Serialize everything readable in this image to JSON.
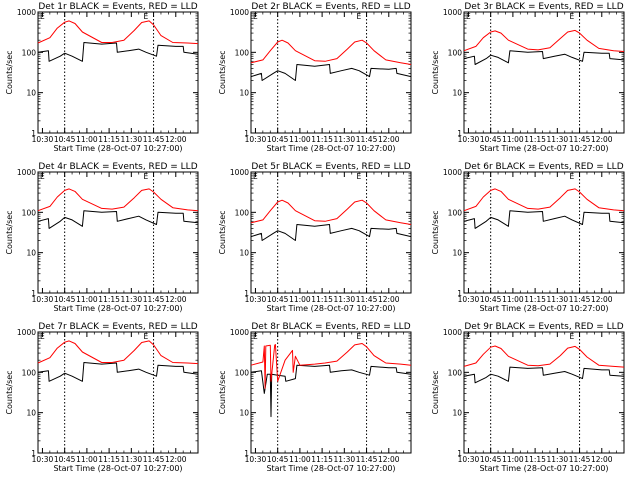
{
  "chart_data": [
    {
      "type": "line",
      "title": "Det 1r BLACK = Events, RED = LLD",
      "xlabel": "Start Time (28-Oct-07 10:27:00)",
      "ylabel": "Counts/sec",
      "yscale": "log",
      "ylim": [
        1,
        1000
      ],
      "yticks": [
        "1",
        "10",
        "100",
        "1000"
      ],
      "xticks": [
        "10:30",
        "10:45",
        "11:00",
        "11:15",
        "11:30",
        "11:45",
        "12:00"
      ],
      "xlim_minutes": [
        -3,
        105
      ],
      "vlines": [
        "10:45",
        "11:45"
      ],
      "marker": "E",
      "series": [
        {
          "color": "#ff0000",
          "x_minutes": [
            -3,
            5,
            10,
            15,
            18,
            22,
            27,
            40,
            47,
            55,
            62,
            67,
            72,
            75,
            80,
            88,
            98,
            105
          ],
          "values": [
            170,
            230,
            400,
            560,
            600,
            520,
            320,
            175,
            175,
            200,
            350,
            550,
            600,
            480,
            260,
            175,
            170,
            165
          ]
        },
        {
          "color": "#000000",
          "x_minutes": [
            -3,
            4,
            4.5,
            12,
            15,
            20,
            27,
            28,
            40,
            50,
            50.5,
            58,
            65,
            70,
            77,
            78,
            90,
            95,
            95.5,
            105
          ],
          "values": [
            100,
            110,
            60,
            80,
            95,
            80,
            60,
            175,
            160,
            170,
            100,
            110,
            120,
            100,
            80,
            150,
            140,
            140,
            100,
            90
          ]
        }
      ]
    },
    {
      "type": "line",
      "title": "Det 2r BLACK = Events, RED = LLD",
      "xlabel": "Start Time (28-Oct-07 10:27:00)",
      "ylabel": "Counts/sec",
      "yscale": "log",
      "ylim": [
        1,
        1000
      ],
      "yticks": [
        "1",
        "10",
        "100",
        "1000"
      ],
      "xticks": [
        "10:30",
        "10:45",
        "11:00",
        "11:15",
        "11:30",
        "11:45",
        "12:00"
      ],
      "xlim_minutes": [
        -3,
        105
      ],
      "vlines": [
        "10:45",
        "11:45"
      ],
      "marker": "E",
      "series": [
        {
          "color": "#ff0000",
          "x_minutes": [
            -3,
            5,
            10,
            15,
            18,
            22,
            27,
            40,
            47,
            55,
            62,
            67,
            72,
            75,
            80,
            88,
            98,
            105
          ],
          "values": [
            55,
            65,
            110,
            180,
            200,
            170,
            110,
            62,
            60,
            70,
            120,
            180,
            200,
            170,
            110,
            65,
            55,
            50
          ]
        },
        {
          "color": "#000000",
          "x_minutes": [
            -3,
            4,
            4.5,
            12,
            15,
            20,
            27,
            28,
            40,
            50,
            50.5,
            58,
            65,
            70,
            77,
            78,
            90,
            95,
            95.5,
            105
          ],
          "values": [
            25,
            30,
            20,
            30,
            35,
            30,
            20,
            50,
            45,
            50,
            30,
            35,
            40,
            35,
            25,
            40,
            38,
            40,
            30,
            25
          ]
        }
      ]
    },
    {
      "type": "line",
      "title": "Det 3r BLACK = Events, RED = LLD",
      "xlabel": "Start Time (28-Oct-07 10:27:00)",
      "ylabel": "Counts/sec",
      "yscale": "log",
      "ylim": [
        1,
        1000
      ],
      "yticks": [
        "1",
        "10",
        "100",
        "1000"
      ],
      "xticks": [
        "10:30",
        "10:45",
        "11:00",
        "11:15",
        "11:30",
        "11:45",
        "12:00"
      ],
      "xlim_minutes": [
        -3,
        105
      ],
      "vlines": [
        "10:45",
        "11:45"
      ],
      "marker": "E",
      "series": [
        {
          "color": "#ff0000",
          "x_minutes": [
            -3,
            5,
            10,
            15,
            18,
            22,
            27,
            40,
            47,
            55,
            62,
            67,
            72,
            75,
            80,
            88,
            98,
            105
          ],
          "values": [
            110,
            140,
            230,
            320,
            340,
            300,
            200,
            120,
            115,
            130,
            220,
            320,
            350,
            300,
            200,
            125,
            110,
            105
          ]
        },
        {
          "color": "#000000",
          "x_minutes": [
            -3,
            4,
            4.5,
            12,
            15,
            20,
            27,
            28,
            40,
            50,
            50.5,
            58,
            65,
            70,
            77,
            78,
            90,
            95,
            95.5,
            105
          ],
          "values": [
            70,
            80,
            50,
            70,
            85,
            75,
            55,
            110,
            100,
            105,
            70,
            80,
            90,
            75,
            60,
            100,
            95,
            95,
            70,
            65
          ]
        }
      ]
    },
    {
      "type": "line",
      "title": "Det 4r BLACK = Events, RED = LLD",
      "xlabel": "Start Time (28-Oct-07 10:27:00)",
      "ylabel": "Counts/sec",
      "yscale": "log",
      "ylim": [
        1,
        1000
      ],
      "yticks": [
        "1",
        "10",
        "100",
        "1000"
      ],
      "xticks": [
        "10:30",
        "10:45",
        "11:00",
        "11:15",
        "11:30",
        "11:45",
        "12:00"
      ],
      "xlim_minutes": [
        -3,
        105
      ],
      "vlines": [
        "10:45",
        "11:45"
      ],
      "marker": "E",
      "series": [
        {
          "color": "#ff0000",
          "x_minutes": [
            -3,
            5,
            10,
            15,
            18,
            22,
            27,
            40,
            47,
            55,
            62,
            67,
            72,
            75,
            80,
            88,
            98,
            105
          ],
          "values": [
            110,
            140,
            240,
            350,
            380,
            330,
            210,
            125,
            120,
            135,
            230,
            350,
            380,
            320,
            210,
            130,
            115,
            110
          ]
        },
        {
          "color": "#000000",
          "x_minutes": [
            -3,
            4,
            4.5,
            12,
            15,
            20,
            27,
            28,
            40,
            50,
            50.5,
            58,
            65,
            70,
            77,
            78,
            90,
            95,
            95.5,
            105
          ],
          "values": [
            60,
            70,
            40,
            60,
            75,
            65,
            45,
            110,
            100,
            105,
            60,
            70,
            80,
            65,
            50,
            100,
            95,
            95,
            60,
            55
          ]
        }
      ]
    },
    {
      "type": "line",
      "title": "Det 5r BLACK = Events, RED = LLD",
      "xlabel": "Start Time (28-Oct-07 10:27:00)",
      "ylabel": "Counts/sec",
      "yscale": "log",
      "ylim": [
        1,
        1000
      ],
      "yticks": [
        "1",
        "10",
        "100",
        "1000"
      ],
      "xticks": [
        "10:30",
        "10:45",
        "11:00",
        "11:15",
        "11:30",
        "11:45",
        "12:00"
      ],
      "xlim_minutes": [
        -3,
        105
      ],
      "vlines": [
        "10:45",
        "11:45"
      ],
      "marker": "E",
      "series": [
        {
          "color": "#ff0000",
          "x_minutes": [
            -3,
            5,
            10,
            15,
            18,
            22,
            27,
            40,
            47,
            55,
            62,
            67,
            72,
            75,
            80,
            88,
            98,
            105
          ],
          "values": [
            55,
            65,
            110,
            180,
            200,
            170,
            110,
            62,
            60,
            70,
            120,
            180,
            200,
            170,
            110,
            65,
            55,
            50
          ]
        },
        {
          "color": "#000000",
          "x_minutes": [
            -3,
            4,
            4.5,
            12,
            15,
            20,
            27,
            28,
            40,
            50,
            50.5,
            58,
            65,
            70,
            77,
            78,
            90,
            95,
            95.5,
            105
          ],
          "values": [
            25,
            30,
            20,
            30,
            35,
            30,
            20,
            50,
            45,
            50,
            30,
            35,
            40,
            35,
            25,
            40,
            38,
            40,
            30,
            25
          ]
        }
      ]
    },
    {
      "type": "line",
      "title": "Det 6r BLACK = Events, RED = LLD",
      "xlabel": "Start Time (28-Oct-07 10:27:00)",
      "ylabel": "Counts/sec",
      "yscale": "log",
      "ylim": [
        1,
        1000
      ],
      "yticks": [
        "1",
        "10",
        "100",
        "1000"
      ],
      "xticks": [
        "10:30",
        "10:45",
        "11:00",
        "11:15",
        "11:30",
        "11:45",
        "12:00"
      ],
      "xlim_minutes": [
        -3,
        105
      ],
      "vlines": [
        "10:45",
        "11:45"
      ],
      "marker": "E",
      "series": [
        {
          "color": "#ff0000",
          "x_minutes": [
            -3,
            5,
            10,
            15,
            18,
            22,
            27,
            40,
            47,
            55,
            62,
            67,
            72,
            75,
            80,
            88,
            98,
            105
          ],
          "values": [
            110,
            140,
            240,
            350,
            380,
            330,
            210,
            125,
            120,
            135,
            230,
            350,
            380,
            320,
            210,
            130,
            115,
            110
          ]
        },
        {
          "color": "#000000",
          "x_minutes": [
            -3,
            4,
            4.5,
            12,
            15,
            20,
            27,
            28,
            40,
            50,
            50.5,
            58,
            65,
            70,
            77,
            78,
            90,
            95,
            95.5,
            105
          ],
          "values": [
            60,
            70,
            40,
            60,
            75,
            65,
            45,
            110,
            100,
            105,
            60,
            70,
            80,
            65,
            50,
            100,
            95,
            95,
            60,
            55
          ]
        }
      ]
    },
    {
      "type": "line",
      "title": "Det 7r BLACK = Events, RED = LLD",
      "xlabel": "Start Time (28-Oct-07 10:27:00)",
      "ylabel": "Counts/sec",
      "yscale": "log",
      "ylim": [
        1,
        1000
      ],
      "yticks": [
        "1",
        "10",
        "100",
        "1000"
      ],
      "xticks": [
        "10:30",
        "10:45",
        "11:00",
        "11:15",
        "11:30",
        "11:45",
        "12:00"
      ],
      "xlim_minutes": [
        -3,
        105
      ],
      "vlines": [
        "10:45",
        "11:45"
      ],
      "marker": "E",
      "series": [
        {
          "color": "#ff0000",
          "x_minutes": [
            -3,
            5,
            10,
            15,
            18,
            22,
            27,
            40,
            47,
            55,
            62,
            67,
            72,
            75,
            80,
            88,
            98,
            105
          ],
          "values": [
            170,
            230,
            400,
            560,
            600,
            520,
            320,
            175,
            175,
            200,
            350,
            550,
            600,
            480,
            260,
            175,
            170,
            165
          ]
        },
        {
          "color": "#000000",
          "x_minutes": [
            -3,
            4,
            4.5,
            12,
            15,
            20,
            27,
            28,
            40,
            50,
            50.5,
            58,
            65,
            70,
            77,
            78,
            90,
            95,
            95.5,
            105
          ],
          "values": [
            100,
            110,
            60,
            80,
            95,
            80,
            60,
            175,
            160,
            170,
            100,
            110,
            120,
            100,
            80,
            150,
            140,
            140,
            100,
            90
          ]
        }
      ]
    },
    {
      "type": "line",
      "title": "Det 8r BLACK = Events, RED = LLD",
      "xlabel": "Start Time (28-Oct-07 10:27:00)",
      "ylabel": "Counts/sec",
      "yscale": "log",
      "ylim": [
        1,
        1000
      ],
      "yticks": [
        "1",
        "10",
        "100",
        "1000"
      ],
      "xticks": [
        "10:30",
        "10:45",
        "11:00",
        "11:15",
        "11:30",
        "11:45",
        "12:00"
      ],
      "xlim_minutes": [
        -3,
        105
      ],
      "vlines": [
        "10:45",
        "11:45"
      ],
      "marker": "E",
      "series": [
        {
          "color": "#ff0000",
          "x_minutes": [
            -3,
            5,
            6,
            6.5,
            7,
            10,
            10.5,
            13,
            13.5,
            15,
            20,
            25,
            25.5,
            27,
            30,
            40,
            47,
            55,
            62,
            67,
            72,
            75,
            80,
            88,
            98,
            105
          ],
          "values": [
            150,
            180,
            450,
            40,
            450,
            470,
            60,
            470,
            490,
            60,
            200,
            350,
            100,
            250,
            150,
            160,
            170,
            190,
            320,
            480,
            520,
            430,
            260,
            170,
            160,
            150
          ]
        },
        {
          "color": "#000000",
          "x_minutes": [
            -3,
            4,
            6,
            8,
            10,
            10.5,
            11,
            15,
            20,
            20.5,
            27,
            28,
            40,
            50,
            50.5,
            58,
            65,
            70,
            77,
            78,
            90,
            95,
            95.5,
            105
          ],
          "values": [
            100,
            110,
            30,
            90,
            90,
            8,
            90,
            85,
            80,
            60,
            70,
            150,
            140,
            150,
            100,
            110,
            115,
            100,
            85,
            140,
            130,
            130,
            100,
            90
          ]
        }
      ]
    },
    {
      "type": "line",
      "title": "Det 9r BLACK = Events, RED = LLD",
      "xlabel": "Start Time (28-Oct-07 10:27:00)",
      "ylabel": "Counts/sec",
      "yscale": "log",
      "ylim": [
        1,
        1000
      ],
      "yticks": [
        "1",
        "10",
        "100",
        "1000"
      ],
      "xticks": [
        "10:30",
        "10:45",
        "11:00",
        "11:15",
        "11:30",
        "11:45",
        "12:00"
      ],
      "xlim_minutes": [
        -3,
        105
      ],
      "vlines": [
        "10:45",
        "11:45"
      ],
      "marker": "E",
      "series": [
        {
          "color": "#ff0000",
          "x_minutes": [
            -3,
            5,
            10,
            15,
            18,
            22,
            27,
            40,
            47,
            55,
            62,
            67,
            72,
            75,
            80,
            88,
            98,
            105
          ],
          "values": [
            140,
            170,
            280,
            420,
            450,
            390,
            250,
            150,
            145,
            160,
            260,
            400,
            440,
            370,
            240,
            150,
            140,
            135
          ]
        },
        {
          "color": "#000000",
          "x_minutes": [
            -3,
            4,
            4.5,
            12,
            15,
            20,
            27,
            28,
            40,
            50,
            50.5,
            58,
            65,
            70,
            77,
            78,
            90,
            95,
            95.5,
            105
          ],
          "values": [
            80,
            90,
            55,
            75,
            90,
            80,
            60,
            135,
            125,
            130,
            85,
            95,
            105,
            90,
            70,
            125,
            115,
            115,
            85,
            80
          ]
        }
      ]
    }
  ]
}
